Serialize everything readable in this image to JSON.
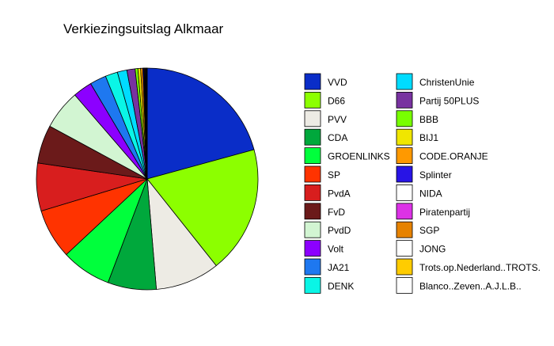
{
  "chart_data": {
    "type": "pie",
    "title": "Verkiezingsuitslag Alkmaar",
    "start_angle_deg": 90,
    "direction": "clockwise",
    "slices": [
      {
        "label": "VVD",
        "value": 20.8,
        "color": "#0A2DC8"
      },
      {
        "label": "D66",
        "value": 18.6,
        "color": "#8CFF00"
      },
      {
        "label": "PVV",
        "value": 9.4,
        "color": "#EDEBE4"
      },
      {
        "label": "CDA",
        "value": 7.1,
        "color": "#00A83C"
      },
      {
        "label": "GROENLINKS",
        "value": 7.3,
        "color": "#00FF3C"
      },
      {
        "label": "SP",
        "value": 7.3,
        "color": "#FF3300"
      },
      {
        "label": "PvdA",
        "value": 7.0,
        "color": "#D81E1E"
      },
      {
        "label": "FvD",
        "value": 5.6,
        "color": "#6B1A1A"
      },
      {
        "label": "PvdD",
        "value": 5.8,
        "color": "#D2F5D2"
      },
      {
        "label": "Volt",
        "value": 2.8,
        "color": "#8C00FF"
      },
      {
        "label": "JA21",
        "value": 2.4,
        "color": "#1E78F0"
      },
      {
        "label": "DENK",
        "value": 1.8,
        "color": "#0AF5E6"
      },
      {
        "label": "ChristenUnie",
        "value": 1.4,
        "color": "#00DCFF"
      },
      {
        "label": "Partij 50PLUS",
        "value": 1.2,
        "color": "#7832A0"
      },
      {
        "label": "BBB",
        "value": 0.4,
        "color": "#78FF00"
      },
      {
        "label": "BIJ1",
        "value": 0.4,
        "color": "#F0E600"
      },
      {
        "label": "CODE.ORANJE",
        "value": 0.3,
        "color": "#FF9900"
      },
      {
        "label": "Splinter",
        "value": 0.15,
        "color": "#2814E6"
      },
      {
        "label": "NIDA",
        "value": 0.1,
        "color": "#FFFFFF"
      },
      {
        "label": "Piratenpartij",
        "value": 0.1,
        "color": "#DC32E6"
      },
      {
        "label": "SGP",
        "value": 0.1,
        "color": "#E68200"
      },
      {
        "label": "JONG",
        "value": 0.1,
        "color": "#FFFFFF"
      },
      {
        "label": "Trots.op.Nederland..TROTS.",
        "value": 0.05,
        "color": "#FFCC00"
      },
      {
        "label": "Blanco..Zeven..A.J.L.B..",
        "value": 0.05,
        "color": "#FFFFFF"
      }
    ],
    "legend": {
      "placement": "right",
      "columns": 2
    }
  }
}
